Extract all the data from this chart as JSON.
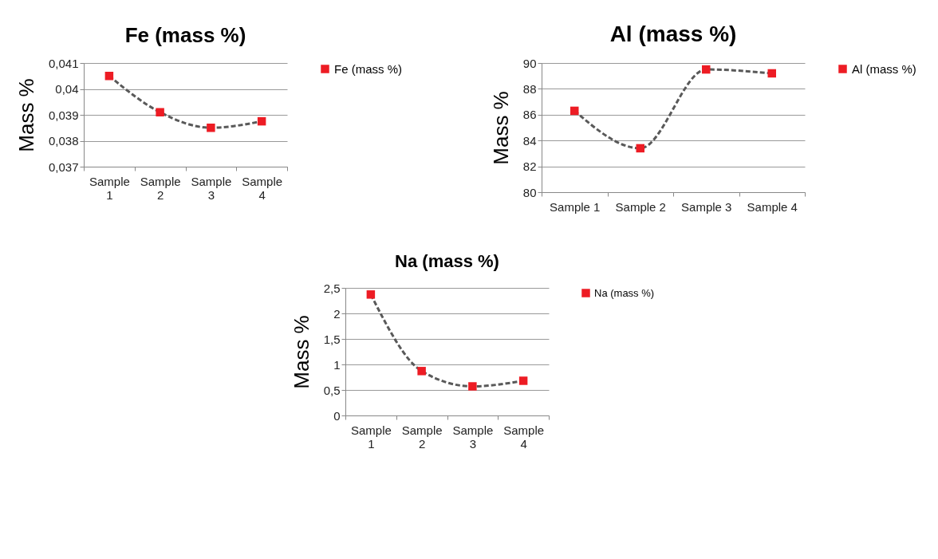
{
  "chart_data": [
    {
      "type": "line",
      "title": "Fe (mass %)",
      "ylabel": "Mass %",
      "categories": [
        "Sample 1",
        "Sample 2",
        "Sample 3",
        "Sample 4"
      ],
      "series": [
        {
          "name": "Fe (mass %)",
          "color": "#ed1c24",
          "values": [
            0.0405,
            0.0391,
            0.0385,
            0.03875
          ]
        }
      ],
      "ylim": [
        0.037,
        0.041
      ],
      "yticks": [
        {
          "value": 0.037,
          "label": "0,037"
        },
        {
          "value": 0.038,
          "label": "0,038"
        },
        {
          "value": 0.039,
          "label": "0,039"
        },
        {
          "value": 0.04,
          "label": "0,04"
        },
        {
          "value": 0.041,
          "label": "0,041"
        }
      ],
      "grid": "y",
      "legend": "right",
      "marker": "square",
      "line_style": "dashed"
    },
    {
      "type": "line",
      "title": "Al (mass %)",
      "ylabel": "Mass %",
      "categories": [
        "Sample 1",
        "Sample 2",
        "Sample 3",
        "Sample 4"
      ],
      "series": [
        {
          "name": "Al (mass %)",
          "color": "#ed1c24",
          "values": [
            86.3,
            83.4,
            89.5,
            89.2
          ]
        }
      ],
      "ylim": [
        80,
        90
      ],
      "yticks": [
        80,
        82,
        84,
        86,
        88,
        90
      ],
      "grid": "y",
      "legend": "right",
      "marker": "square",
      "line_style": "dashed"
    },
    {
      "type": "line",
      "title": "Na (mass %)",
      "ylabel": "Mass %",
      "categories": [
        "Sample 1",
        "Sample 2",
        "Sample 3",
        "Sample 4"
      ],
      "series": [
        {
          "name": "Na (mass %)",
          "color": "#ed1c24",
          "values": [
            2.37,
            0.87,
            0.57,
            0.68
          ]
        }
      ],
      "ylim": [
        0,
        2.5
      ],
      "yticks": [
        0,
        {
          "value": 0.5,
          "label": "0,5"
        },
        1,
        {
          "value": 1.5,
          "label": "1,5"
        },
        2,
        {
          "value": 2.5,
          "label": "2,5"
        }
      ],
      "grid": "y",
      "legend": "right",
      "marker": "square",
      "line_style": "dashed"
    }
  ]
}
